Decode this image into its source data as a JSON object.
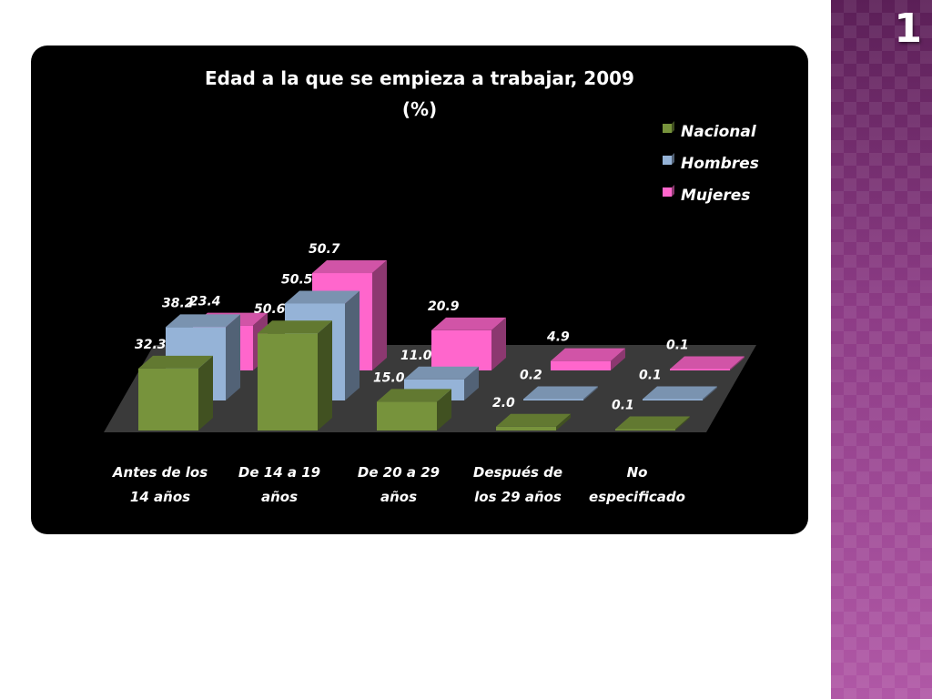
{
  "slide": {
    "number": "1"
  },
  "colors": {
    "panel": "#000000",
    "floor": "#3a3a3a",
    "text": "#ffffff",
    "side_strip": "#7a2f74"
  },
  "chart_data": {
    "type": "bar",
    "style": "3d-clustered-column",
    "title_lines": [
      "Edad a la que se empieza a trabajar, 2009",
      "(%)"
    ],
    "categories": [
      [
        "Antes de los",
        "14 años"
      ],
      [
        "De 14 a 19",
        "años"
      ],
      [
        "De 20 a 29",
        "años"
      ],
      [
        "Después de",
        "los 29 años"
      ],
      [
        "No",
        "especificado"
      ]
    ],
    "series": [
      {
        "name": "Nacional",
        "color": "#77933c",
        "values": [
          32.3,
          50.6,
          15.0,
          2.0,
          0.1
        ],
        "labels": [
          "32.3",
          "50.6",
          "15.0",
          "2.0",
          "0.1"
        ]
      },
      {
        "name": "Hombres",
        "color": "#95b3d7",
        "values": [
          38.2,
          50.5,
          11.0,
          0.2,
          0.1
        ],
        "labels": [
          "38.2",
          "50.5",
          "11.0",
          "0.2",
          "0.1"
        ]
      },
      {
        "name": "Mujeres",
        "color": "#ff66cc",
        "values": [
          23.4,
          50.7,
          20.9,
          4.9,
          0.1
        ],
        "labels": [
          "23.4",
          "50.7",
          "20.9",
          "4.9",
          "0.1"
        ]
      }
    ],
    "ylim": [
      0,
      55
    ],
    "legend_position": "right",
    "grid": false
  }
}
